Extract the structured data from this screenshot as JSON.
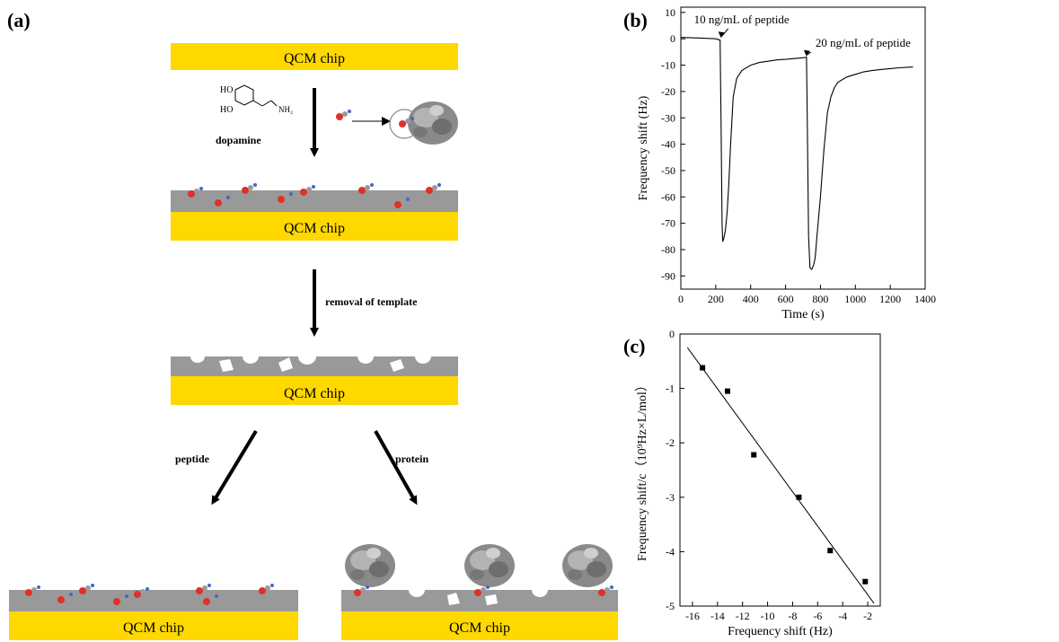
{
  "panel_labels": {
    "a": "(a)",
    "b": "(b)",
    "c": "(c)"
  },
  "scheme": {
    "chip_label": "QCM chip",
    "dopamine_label": "dopamine",
    "ho_label": "HO",
    "nh2_label": "NH₂",
    "removal_label": "removal of template",
    "peptide_label": "peptide",
    "protein_label": "protein"
  },
  "colors": {
    "chip": "#ffd800",
    "layer": "#999999",
    "molecule": "#e0302a",
    "protein": "#8a8a8a"
  },
  "chart_data": [
    {
      "type": "line",
      "xlabel": "Time (s)",
      "ylabel": "Frequency shift (Hz)",
      "xlim": [
        0,
        1400
      ],
      "ylim": [
        -95,
        12
      ],
      "xticks": [
        0,
        200,
        400,
        600,
        800,
        1000,
        1200,
        1400
      ],
      "yticks": [
        10,
        0,
        -10,
        -20,
        -30,
        -40,
        -50,
        -60,
        -70,
        -80,
        -90
      ],
      "annotations": [
        {
          "text": "10 ng/mL of peptide",
          "x": 230,
          "y": 0
        },
        {
          "text": "20 ng/mL of peptide",
          "x": 720,
          "y": -7
        }
      ],
      "series": [
        {
          "x": [
            0,
            100,
            200,
            225,
            230,
            236,
            240,
            245,
            255,
            265,
            275,
            285,
            300,
            320,
            350,
            400,
            450,
            500,
            550,
            600,
            650,
            700,
            720,
            725,
            732,
            740,
            750,
            760,
            770,
            780,
            800,
            820,
            840,
            860,
            880,
            900,
            950,
            1000,
            1050,
            1100,
            1150,
            1200,
            1250,
            1300,
            1330
          ],
          "y": [
            0.5,
            0.3,
            0,
            -0.5,
            -30,
            -70,
            -77,
            -76,
            -73,
            -66,
            -55,
            -40,
            -22,
            -15,
            -12,
            -10,
            -9,
            -8.5,
            -8,
            -7.8,
            -7.5,
            -7.2,
            -7,
            -35,
            -75,
            -87,
            -87.5,
            -86,
            -83,
            -75,
            -60,
            -42,
            -28,
            -22,
            -18.5,
            -16.5,
            -14.5,
            -13.5,
            -12.5,
            -12,
            -11.6,
            -11.3,
            -11,
            -10.8,
            -10.7
          ]
        }
      ]
    },
    {
      "type": "scatter",
      "xlabel": "Frequency shift (Hz)",
      "ylabel": "Frequency shift/c（10⁹Hz×L/mol）",
      "xlim": [
        -17,
        -1
      ],
      "ylim": [
        -5,
        0
      ],
      "xticks": [
        -16,
        -14,
        -12,
        -10,
        -8,
        -6,
        -4,
        -2
      ],
      "yticks": [
        0,
        -1,
        -2,
        -3,
        -4,
        -5
      ],
      "series": [
        {
          "x": [
            -15.2,
            -13.2,
            -11.1,
            -7.5,
            -5,
            -2.2
          ],
          "y": [
            -0.62,
            -1.05,
            -2.22,
            -3.0,
            -3.98,
            -4.55
          ]
        }
      ],
      "fit_line": {
        "x": [
          -16.4,
          -1.5
        ],
        "y": [
          -0.25,
          -4.95
        ]
      }
    }
  ]
}
